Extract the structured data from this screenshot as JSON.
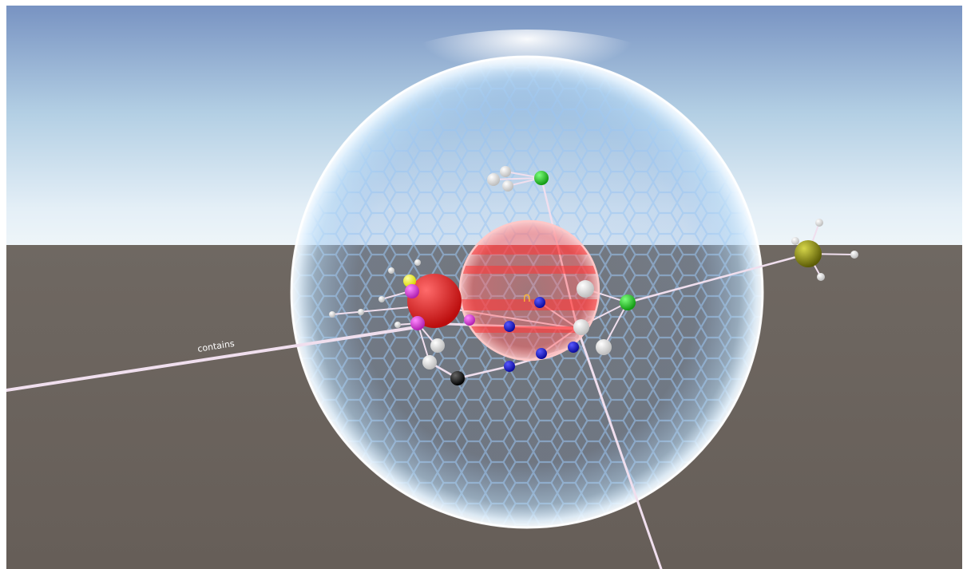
{
  "scene": {
    "labels": {
      "contains": "contains",
      "intersection": "∩"
    },
    "colors": {
      "sky_top": "#7d9ac8",
      "sky_horizon": "#e3eef6",
      "ground": "#675f59",
      "outer_sphere": "#a9d4f5",
      "inner_sphere": "#ff6262",
      "edge": "#f0dfee",
      "atom_white": "#f4f4f4",
      "atom_green": "#22cc33",
      "atom_blue": "#1a1ad6",
      "atom_magenta": "#dd33dd",
      "atom_yellow": "#ffff22",
      "atom_red": "#e01818",
      "atom_black": "#151515",
      "atom_olive": "#8a8a14"
    }
  }
}
